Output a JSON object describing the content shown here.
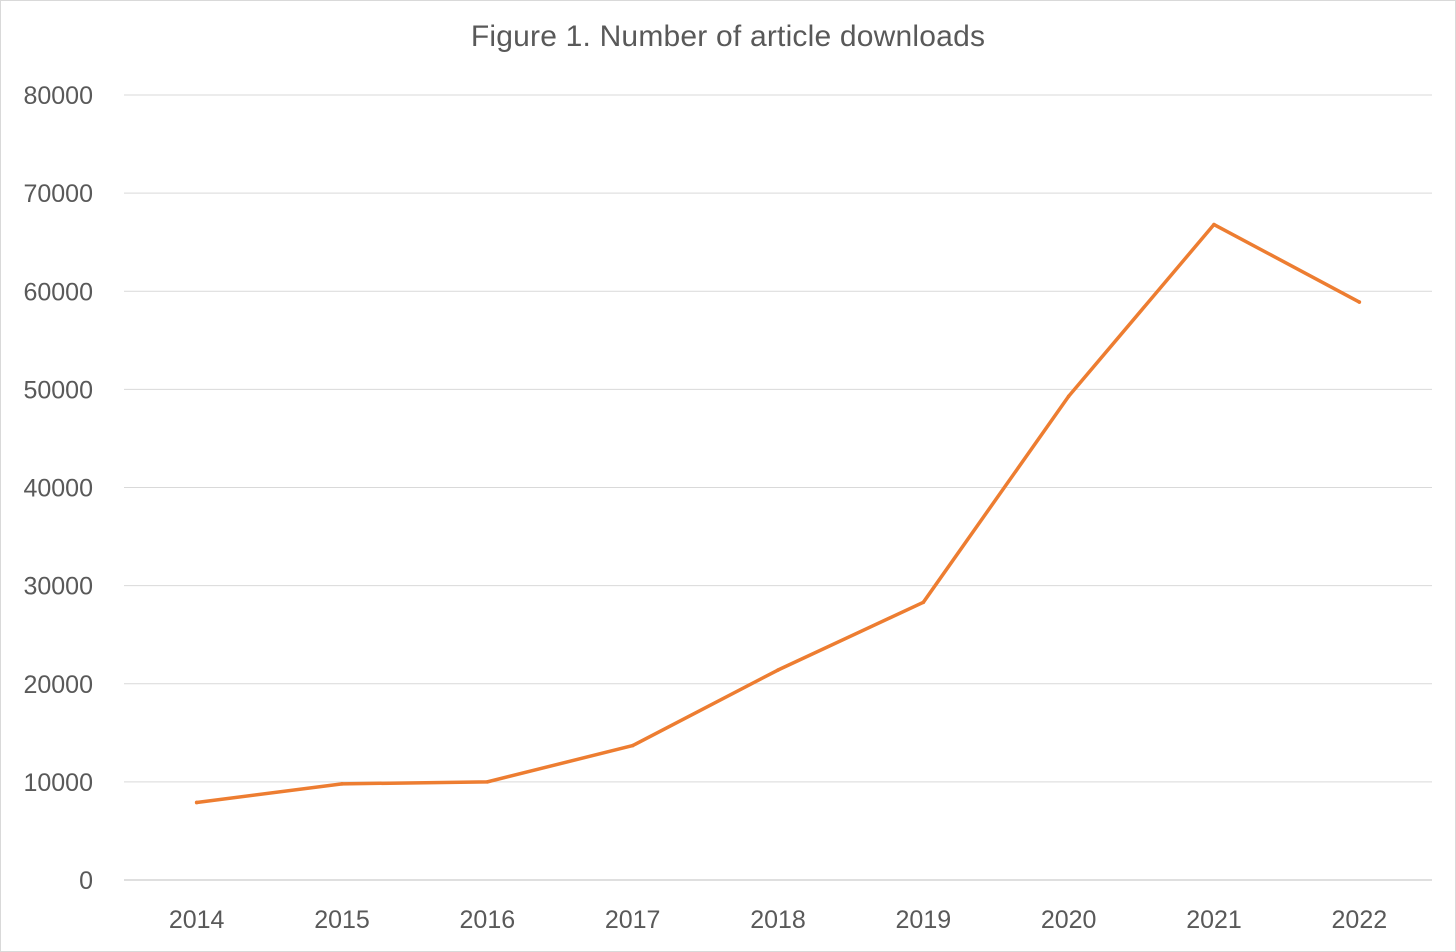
{
  "chart_data": {
    "type": "line",
    "title": "Figure 1. Number of article downloads",
    "xlabel": "",
    "ylabel": "",
    "categories": [
      "2014",
      "2015",
      "2016",
      "2017",
      "2018",
      "2019",
      "2020",
      "2021",
      "2022"
    ],
    "series": [
      {
        "values": [
          7900,
          9800,
          10000,
          13700,
          21400,
          28300,
          49300,
          66800,
          58900
        ],
        "color": "#ed7d31"
      }
    ],
    "ylim": [
      0,
      80000
    ],
    "yticks": [
      "0",
      "10000",
      "20000",
      "30000",
      "40000",
      "50000",
      "60000",
      "70000",
      "80000"
    ],
    "grid": true,
    "legend": "none",
    "gridline_color": "#d9d9d9",
    "axis_color": "#bfbfbf"
  }
}
